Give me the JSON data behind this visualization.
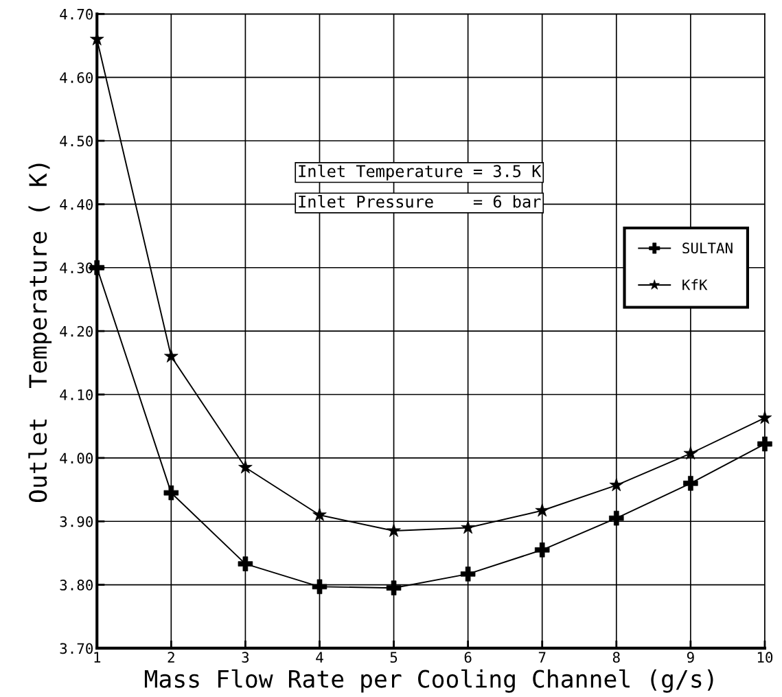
{
  "chart_data": {
    "type": "line",
    "xlabel": "Mass Flow Rate per Cooling Channel (g/s)",
    "ylabel": "Outlet  Temperature ( K)",
    "x": [
      1,
      2,
      3,
      4,
      5,
      6,
      7,
      8,
      9,
      10
    ],
    "series": [
      {
        "name": "SULTAN",
        "color": "#000000",
        "marker": "cross",
        "values": [
          4.3,
          3.945,
          3.833,
          3.797,
          3.795,
          3.817,
          3.855,
          3.905,
          3.96,
          4.022
        ]
      },
      {
        "name": "KfK",
        "color": "#000000",
        "marker": "star",
        "values": [
          4.66,
          4.16,
          3.985,
          3.91,
          3.885,
          3.89,
          3.917,
          3.957,
          4.007,
          4.063
        ]
      }
    ],
    "xlim": [
      1,
      10
    ],
    "xticks": [
      1,
      2,
      3,
      4,
      5,
      6,
      7,
      8,
      9,
      {
        "value": 10,
        "label": "10"
      }
    ],
    "ylim": [
      3.7,
      4.7
    ],
    "yticks": [
      {
        "value": 3.7,
        "label": "3.70"
      },
      {
        "value": 3.8,
        "label": "3.80"
      },
      {
        "value": 3.9,
        "label": "3.90"
      },
      {
        "value": 4.0,
        "label": "4.00"
      },
      {
        "value": 4.1,
        "label": "4.10"
      },
      {
        "value": 4.2,
        "label": "4.20"
      },
      {
        "value": 4.3,
        "label": "4.30"
      },
      {
        "value": 4.4,
        "label": "4.40"
      },
      {
        "value": 4.5,
        "label": "4.50"
      },
      {
        "value": 4.6,
        "label": "4.60"
      },
      {
        "value": 4.7,
        "label": "4.70"
      }
    ],
    "grid": true,
    "legend": "right",
    "line_style": "solid",
    "annotations": [
      "Inlet Temperature = 3.5 K",
      "Inlet Pressure    = 6 bar"
    ]
  }
}
